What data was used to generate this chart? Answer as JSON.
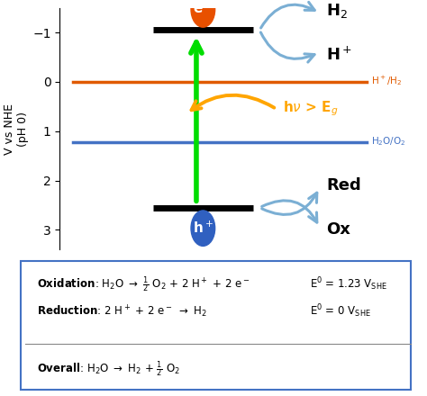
{
  "fig_width": 4.74,
  "fig_height": 4.4,
  "dpi": 100,
  "bg_color": "#ffffff",
  "ylabel": "V vs NHE\n(pH 0)",
  "ylim_min": -1.5,
  "ylim_max": 3.4,
  "yticks": [
    -1,
    0,
    1,
    2,
    3
  ],
  "xlim": [
    0,
    10
  ],
  "hplus_h2_y": 0.0,
  "h2o_o2_y": 1.23,
  "cb_bar_y": -1.05,
  "vb_bar_y": 2.55,
  "bar_xstart": 2.8,
  "bar_xend": 5.8,
  "orange_line_color": "#e05a00",
  "blue_line_color": "#4472c4",
  "green_arrow_color": "#00dd00",
  "black_bar_color": "#000000",
  "electron_circle_color": "#e85000",
  "hole_circle_color": "#3060c0",
  "light_arrow_color": "#ffa500",
  "react_arrow_color": "#7bafd4",
  "box_border": "#4472c4",
  "text_color": "#000000"
}
